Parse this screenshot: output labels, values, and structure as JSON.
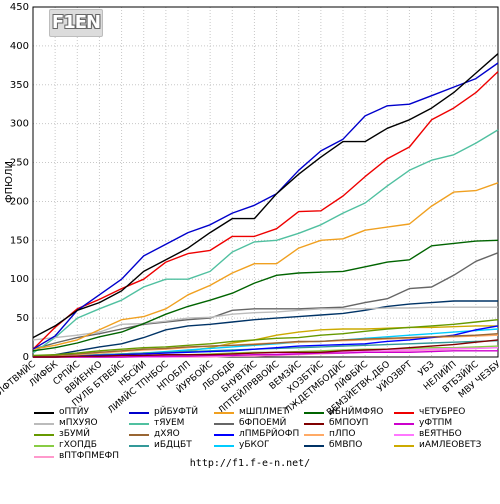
{
  "page": {
    "logo_text": "F1EN",
    "footer_url": "http://f1.f-e-n.net/"
  },
  "chart_data": {
    "type": "line",
    "title": "",
    "xlabel": "",
    "ylabel": "ФПЮЛИ",
    "ylim": [
      0,
      450
    ],
    "yticks": [
      0,
      50,
      100,
      150,
      200,
      250,
      300,
      350,
      400,
      450
    ],
    "grid": true,
    "legend_position": "bottom",
    "categories": [
      "ЛФТВМЙС",
      "ЛЙФБК",
      "СРПЙС",
      "ВВЙЕНКО",
      "ПУЛБ БТВЕЙС",
      "НБСЙИ",
      "ЛИМЙС ТПНБОС",
      "НПОБЛП",
      "ЙУРБОЙС",
      "ЛБОБДБ",
      "БНУВТЙС",
      "ЛПТЕЙЛРВВОЙС",
      "ВЕМЗЙС",
      "ХОЗБТЙС",
      "ЛЖДЕТМБОДЙС",
      "ЛЙФБЙС",
      "ВЕМЗЙЕТВК,ДБО",
      "УЙОЗВРТ",
      "УБЗ",
      "НЕЛИЙП",
      "ВТБЗЙЙС",
      "МВУ ЧЕЗБУ"
    ],
    "series": [
      {
        "name": "оПТЙУ",
        "color": "#000000",
        "values": [
          25,
          40,
          60,
          70,
          85,
          110,
          125,
          140,
          160,
          178,
          178,
          210,
          235,
          257,
          277,
          277,
          294,
          305,
          320,
          340,
          365,
          390
        ]
      },
      {
        "name": "рЙБУФТЙ",
        "color": "#0000cc",
        "values": [
          10,
          27,
          60,
          80,
          100,
          130,
          145,
          160,
          170,
          185,
          195,
          210,
          240,
          265,
          280,
          310,
          323,
          325,
          336,
          347,
          358,
          378
        ]
      },
      {
        "name": "мШПЛМЕТ",
        "color": "#f0a020",
        "values": [
          10,
          15,
          22,
          35,
          48,
          52,
          62,
          80,
          92,
          108,
          120,
          120,
          140,
          150,
          152,
          163,
          167,
          171,
          194,
          212,
          214,
          224
        ]
      },
      {
        "name": "иБНЙМФЯО",
        "color": "#006400",
        "values": [
          8,
          12,
          18,
          26,
          32,
          43,
          55,
          65,
          73,
          82,
          95,
          105,
          108,
          109,
          110,
          116,
          122,
          125,
          143,
          146,
          149,
          150
        ]
      },
      {
        "name": "чЕТУБРЕО",
        "color": "#ee0000",
        "values": [
          10,
          38,
          62,
          74,
          88,
          100,
          122,
          133,
          137,
          155,
          155,
          165,
          187,
          188,
          207,
          232,
          255,
          270,
          305,
          320,
          340,
          367
        ]
      },
      {
        "name": "мПХУЯО",
        "color": "#bbbbbb",
        "values": [
          22,
          25,
          28,
          32,
          42,
          43,
          46,
          50,
          51,
          55,
          57,
          58,
          60,
          62,
          62,
          62,
          63,
          63,
          64,
          64,
          64,
          64
        ]
      },
      {
        "name": "тЯУЕМ",
        "color": "#50c0a0",
        "values": [
          5,
          25,
          50,
          62,
          73,
          90,
          100,
          100,
          110,
          135,
          148,
          150,
          159,
          170,
          185,
          198,
          220,
          240,
          253,
          260,
          275,
          292
        ]
      },
      {
        "name": "бФПОЕМЙ",
        "color": "#666666",
        "values": [
          10,
          18,
          25,
          30,
          36,
          42,
          45,
          48,
          50,
          60,
          62,
          62,
          62,
          63,
          64,
          70,
          75,
          88,
          90,
          105,
          123,
          134
        ]
      },
      {
        "name": "бМПОУП",
        "color": "#800000",
        "values": [
          0,
          0,
          1,
          1,
          2,
          2,
          3,
          3,
          3,
          4,
          5,
          6,
          6,
          6,
          8,
          9,
          10,
          12,
          14,
          16,
          19,
          22
        ]
      },
      {
        "name": "уФТПМ",
        "color": "#cc00cc",
        "values": [
          0,
          0,
          0,
          0,
          0,
          1,
          1,
          1,
          2,
          2,
          3,
          3,
          4,
          5,
          5,
          6,
          6,
          6,
          7,
          8,
          8,
          8
        ]
      },
      {
        "name": "зБУМЙ",
        "color": "#669900",
        "values": [
          2,
          3,
          5,
          8,
          10,
          12,
          13,
          15,
          17,
          20,
          22,
          24,
          25,
          28,
          30,
          33,
          36,
          38,
          40,
          42,
          45,
          48
        ]
      },
      {
        "name": "дХЯО",
        "color": "#996633",
        "values": [
          0,
          2,
          4,
          6,
          8,
          10,
          11,
          13,
          14,
          15,
          16,
          18,
          20,
          20,
          22,
          23,
          24,
          25,
          26,
          27,
          28,
          30
        ]
      },
      {
        "name": "лПМБРЙОФП",
        "color": "#0000ff",
        "values": [
          0,
          0,
          1,
          2,
          3,
          4,
          5,
          6,
          7,
          8,
          10,
          12,
          14,
          15,
          16,
          17,
          20,
          22,
          25,
          28,
          35,
          40
        ]
      },
      {
        "name": "пЛПО",
        "color": "#ffaa66",
        "values": [
          0,
          1,
          3,
          5,
          7,
          9,
          10,
          12,
          14,
          15,
          17,
          18,
          19,
          20,
          21,
          22,
          23,
          24,
          25,
          26,
          27,
          28
        ]
      },
      {
        "name": "вЕЯТНБО",
        "color": "#ff77ff",
        "values": [
          0,
          0,
          0,
          0,
          0,
          0,
          0,
          1,
          1,
          2,
          3,
          4,
          5,
          6,
          7,
          8,
          9,
          9,
          10,
          11,
          11,
          12
        ]
      },
      {
        "name": "гХОПДБ",
        "color": "#88cc44",
        "values": [
          0,
          0,
          0,
          0,
          1,
          2,
          3,
          3,
          4,
          5,
          6,
          6,
          7,
          8,
          9,
          10,
          10,
          11,
          12,
          12,
          13,
          14
        ]
      },
      {
        "name": "иБДЦБТ",
        "color": "#339999",
        "values": [
          0,
          1,
          2,
          3,
          4,
          5,
          6,
          7,
          8,
          9,
          10,
          11,
          12,
          13,
          14,
          15,
          16,
          17,
          18,
          19,
          20,
          21
        ]
      },
      {
        "name": "уБКОГ",
        "color": "#00ccff",
        "values": [
          0,
          1,
          2,
          3,
          4,
          5,
          7,
          9,
          11,
          13,
          15,
          17,
          19,
          20,
          22,
          24,
          26,
          28,
          30,
          32,
          34,
          36
        ]
      },
      {
        "name": "бМВПО",
        "color": "#003366",
        "values": [
          0,
          3,
          8,
          13,
          17,
          25,
          35,
          40,
          42,
          45,
          48,
          50,
          52,
          54,
          56,
          60,
          65,
          68,
          70,
          72,
          72,
          72
        ]
      },
      {
        "name": "иАМЛЕОВЕТЗ",
        "color": "#ccaa00",
        "values": [
          0,
          1,
          2,
          3,
          4,
          5,
          6,
          8,
          12,
          18,
          22,
          28,
          32,
          35,
          36,
          36,
          37,
          38,
          38,
          39,
          40,
          40
        ]
      },
      {
        "name": "вПТФПМЕФП",
        "color": "#ff99cc",
        "values": [
          0,
          0,
          0,
          0,
          0,
          0,
          0,
          0,
          0,
          1,
          1,
          2,
          3,
          4,
          5,
          6,
          7,
          8,
          9,
          10,
          11,
          12
        ]
      }
    ]
  }
}
